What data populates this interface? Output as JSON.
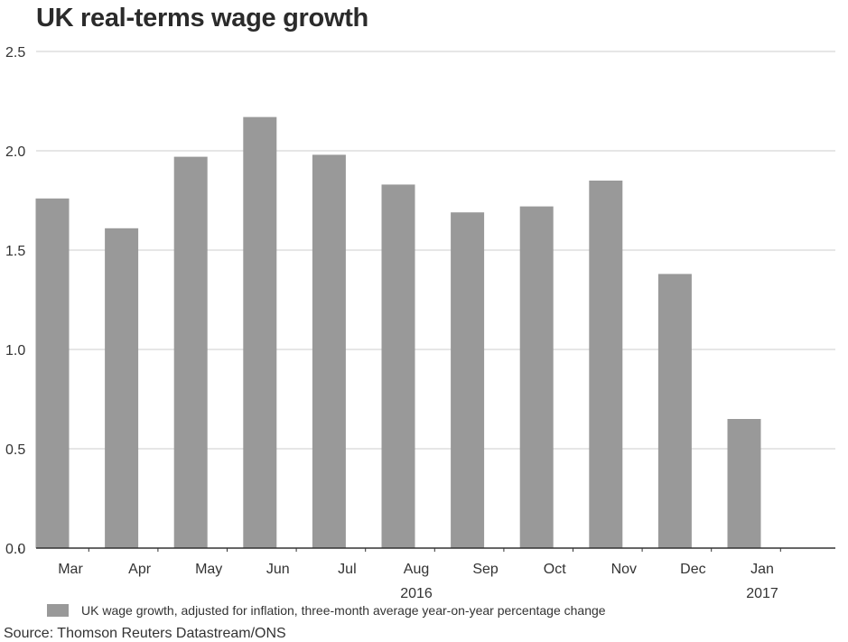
{
  "title": "UK real-terms wage growth",
  "source": "Source: Thomson Reuters Datastream/ONS",
  "legend_label": "UK wage growth, adjusted for inflation, three-month average year-on-year percentage change",
  "colors": {
    "bar": "#999999",
    "grid": "#cccccc",
    "axis": "#333333",
    "text": "#333333"
  },
  "chart_data": {
    "type": "bar",
    "title": "UK real-terms wage growth",
    "xlabel": "",
    "ylabel": "",
    "categories": [
      "Mar",
      "Apr",
      "May",
      "Jun",
      "Jul",
      "Aug",
      "Sep",
      "Oct",
      "Nov",
      "Dec",
      "Jan"
    ],
    "year_labels": [
      {
        "label": "2016",
        "category": "Aug"
      },
      {
        "label": "2017",
        "category": "Jan"
      }
    ],
    "series": [
      {
        "name": "UK wage growth, adjusted for inflation, three-month average year-on-year percentage change",
        "values": [
          1.76,
          1.61,
          1.97,
          2.17,
          1.98,
          1.83,
          1.69,
          1.72,
          1.85,
          1.38,
          0.65
        ]
      }
    ],
    "ylim": [
      0,
      2.5
    ],
    "yticks": [
      "0.0",
      "0.5",
      "1.0",
      "1.5",
      "2.0",
      "2.5"
    ],
    "grid": true,
    "legend_position": "bottom-left"
  }
}
